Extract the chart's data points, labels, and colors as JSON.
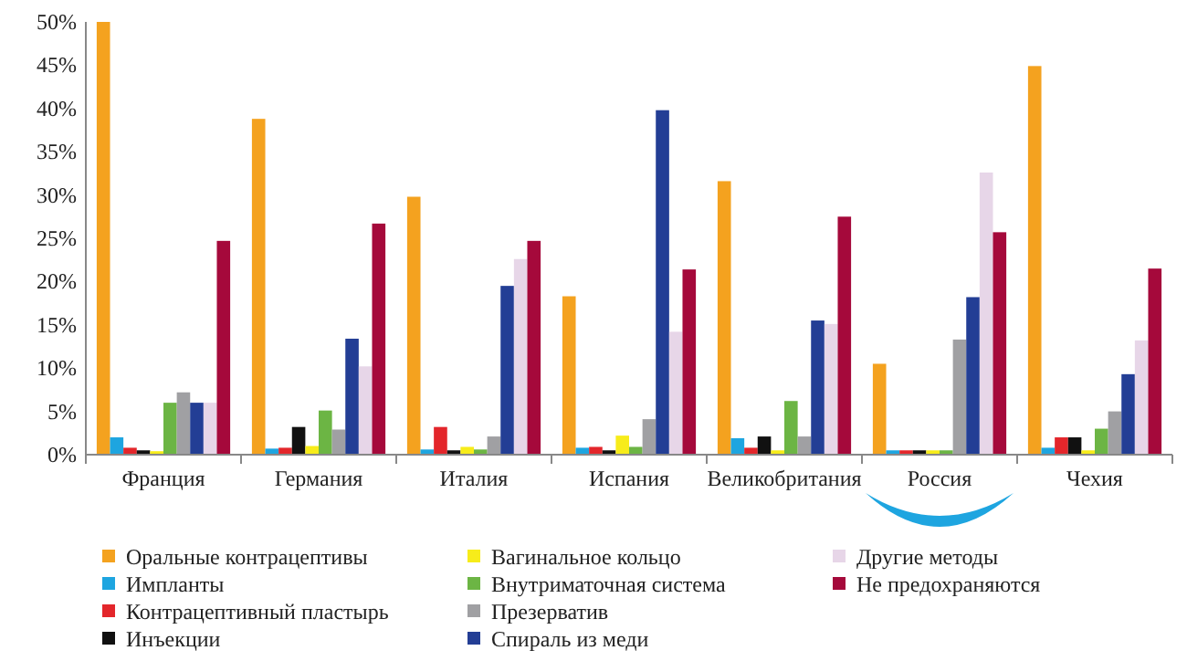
{
  "chart_data": {
    "type": "bar",
    "categories": [
      "Франция",
      "Германия",
      "Италия",
      "Испания",
      "Великобритания",
      "Россия",
      "Чехия"
    ],
    "series": [
      {
        "name": "Оральные контрацептивы",
        "color": "#f4a21f",
        "values": [
          50,
          38.8,
          29.8,
          18.3,
          31.6,
          10.5,
          44.9
        ]
      },
      {
        "name": "Импланты",
        "color": "#1ea5e0",
        "values": [
          2,
          0.7,
          0.6,
          0.8,
          1.9,
          0.5,
          0.8
        ]
      },
      {
        "name": "Контрацептивный пластырь",
        "color": "#e3262b",
        "values": [
          0.8,
          0.8,
          3.2,
          0.9,
          0.8,
          0.5,
          2
        ]
      },
      {
        "name": "Инъекции",
        "color": "#111111",
        "values": [
          0.5,
          3.2,
          0.5,
          0.5,
          2.1,
          0.5,
          2
        ]
      },
      {
        "name": "Вагинальное кольцо",
        "color": "#f7ec1a",
        "values": [
          0.4,
          1,
          0.9,
          2.2,
          0.5,
          0.5,
          0.5
        ]
      },
      {
        "name": "Внутриматочная система",
        "color": "#6cb544",
        "values": [
          6,
          5.1,
          0.6,
          0.9,
          6.2,
          0.5,
          3
        ]
      },
      {
        "name": "Презерватив",
        "color": "#a0a0a3",
        "values": [
          7.2,
          2.9,
          2.1,
          4.1,
          2.1,
          13.3,
          5
        ]
      },
      {
        "name": "Спираль из меди",
        "color": "#233e95",
        "values": [
          6,
          13.4,
          19.5,
          39.8,
          15.5,
          18.2,
          9.3
        ]
      },
      {
        "name": "Другие методы",
        "color": "#e7d6e8",
        "values": [
          6,
          10.2,
          22.6,
          14.2,
          15.1,
          32.6,
          13.2
        ]
      },
      {
        "name": "Не предохраняются",
        "color": "#a5093b",
        "values": [
          24.7,
          26.7,
          24.7,
          21.4,
          27.5,
          25.7,
          21.5
        ]
      }
    ],
    "ylim": [
      0,
      50
    ],
    "yticks": [
      {
        "value": 0,
        "label": "0%"
      },
      {
        "value": 5,
        "label": "5%"
      },
      {
        "value": 10,
        "label": "10%"
      },
      {
        "value": 15,
        "label": "15%"
      },
      {
        "value": 20,
        "label": "20%"
      },
      {
        "value": 25,
        "label": "25%"
      },
      {
        "value": 30,
        "label": "30%"
      },
      {
        "value": 35,
        "label": "35%"
      },
      {
        "value": 40,
        "label": "40%"
      },
      {
        "value": 45,
        "label": "45%"
      },
      {
        "value": 50,
        "label": "50%"
      }
    ],
    "legend": "bottom",
    "grid": false
  }
}
